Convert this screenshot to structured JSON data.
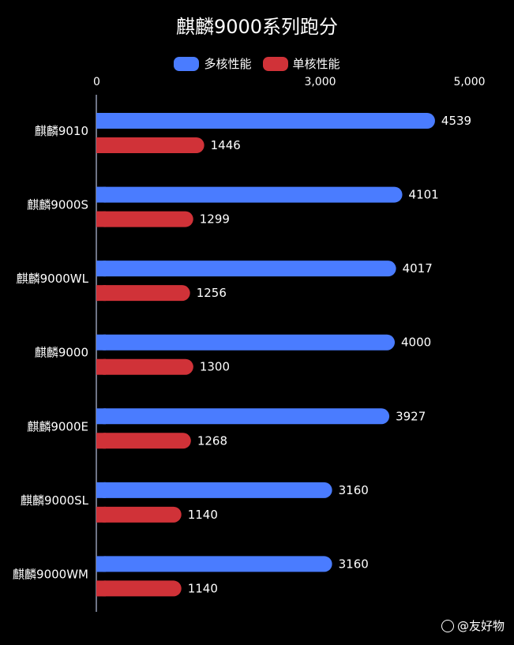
{
  "chart_data": {
    "type": "bar",
    "orientation": "horizontal",
    "title": "麒麟9000系列跑分",
    "categories": [
      "麒麟9010",
      "麒麟9000S",
      "麒麟9000WL",
      "麒麟9000",
      "麒麟9000E",
      "麒麟9000SL",
      "麒麟9000WM"
    ],
    "series": [
      {
        "name": "多核性能",
        "color": "#4a7cff",
        "values": [
          4539,
          4101,
          4017,
          4000,
          3927,
          3160,
          3160
        ]
      },
      {
        "name": "单核性能",
        "color": "#d03238",
        "values": [
          1446,
          1299,
          1256,
          1300,
          1268,
          1140,
          1140
        ]
      }
    ],
    "xticks": [
      "0",
      "3,000",
      "5,000"
    ],
    "xtick_values": [
      0,
      3000,
      5000
    ],
    "legend": "top-center",
    "grid": false
  },
  "watermark": {
    "text": "@友好物"
  }
}
